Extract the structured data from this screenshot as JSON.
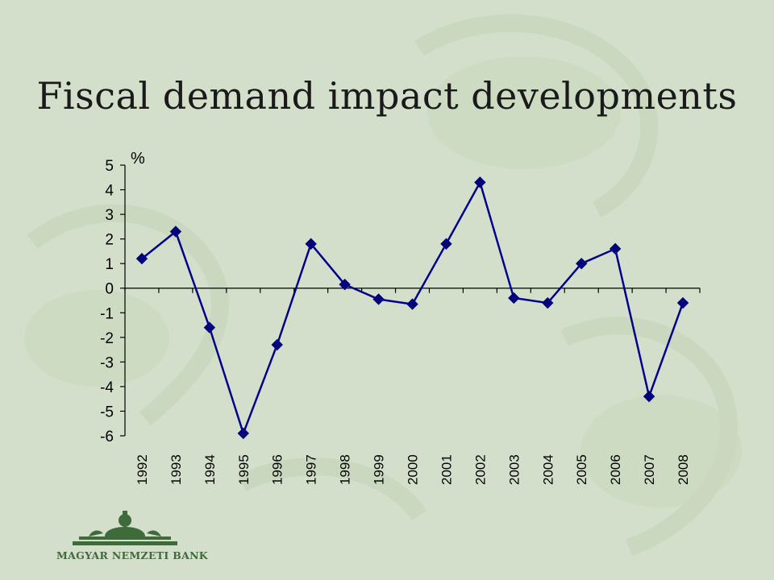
{
  "slide": {
    "title": "Fiscal demand impact developments",
    "logo_text": "MAGYAR NEMZETI BANK"
  },
  "colors": {
    "background": "#d4dfcb",
    "series_line": "#00008b",
    "marker": "#00007a",
    "logo": "#3f6a3a"
  },
  "chart_data": {
    "type": "line",
    "unit_label": "%",
    "categories": [
      "1992",
      "1993",
      "1994",
      "1995",
      "1996",
      "1997",
      "1998",
      "1999",
      "2000",
      "2001",
      "2002",
      "2003",
      "2004",
      "2005",
      "2006",
      "2007",
      "2008"
    ],
    "series": [
      {
        "values": [
          1.2,
          2.3,
          -1.6,
          -5.9,
          -2.3,
          1.8,
          0.15,
          -0.45,
          -0.65,
          1.8,
          4.3,
          -0.4,
          -0.6,
          1.0,
          1.6,
          -4.4,
          -0.6
        ]
      }
    ],
    "ylim": [
      -6,
      5
    ],
    "yticks": [
      "5",
      "4",
      "3",
      "2",
      "1",
      "0",
      "-1",
      "-2",
      "-3",
      "-4",
      "-5",
      "-6"
    ],
    "grid": false,
    "legend": "none"
  }
}
